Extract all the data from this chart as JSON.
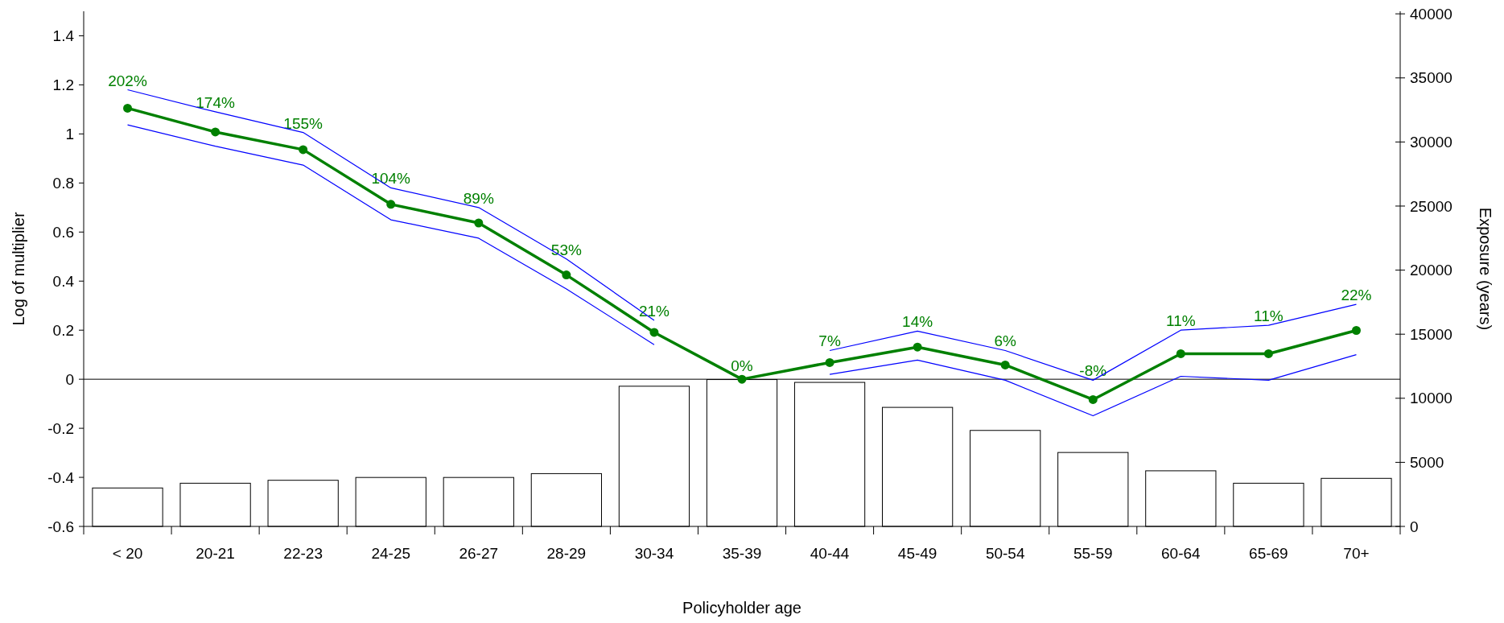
{
  "chart_data": {
    "type": "line",
    "xlabel": "Policyholder age",
    "ylabel": "Log of multiplier",
    "y2label": "Exposure (years)",
    "categories": [
      "< 20",
      "20-21",
      "22-23",
      "24-25",
      "26-27",
      "28-29",
      "30-34",
      "35-39",
      "40-44",
      "45-49",
      "50-54",
      "55-59",
      "60-64",
      "65-69",
      "70+"
    ],
    "series": [
      {
        "type": "bar",
        "axis": "y2",
        "color": "#ffffff",
        "values": [
          3000,
          3370,
          3600,
          3820,
          3820,
          4120,
          10940,
          11460,
          11240,
          9290,
          7490,
          5770,
          4340,
          3370,
          3750
        ]
      },
      {
        "type": "line",
        "color": "#0000ff",
        "marker": "none",
        "values": [
          1.18,
          1.09,
          1.006,
          0.78,
          0.7,
          0.49,
          0.24,
          null,
          0.117,
          0.196,
          0.117,
          -0.004,
          0.2,
          0.22,
          0.305
        ]
      },
      {
        "type": "line",
        "color": "#0000ff",
        "marker": "none",
        "values": [
          1.037,
          0.95,
          0.873,
          0.65,
          0.575,
          0.368,
          0.141,
          null,
          0.02,
          0.078,
          -0.004,
          -0.149,
          0.012,
          -0.004,
          0.1
        ]
      },
      {
        "color": "#008000",
        "marker": "circle",
        "values": [
          1.105,
          1.008,
          0.936,
          0.713,
          0.637,
          0.425,
          0.191,
          0,
          0.068,
          0.131,
          0.058,
          -0.083,
          0.104,
          0.104,
          0.199
        ]
      }
    ],
    "annotations": [
      {
        "text": "202%",
        "x": "< 20",
        "y": 1.105
      },
      {
        "text": "174%",
        "x": "20-21",
        "y": 1.008
      },
      {
        "text": "155%",
        "x": "22-23",
        "y": 0.936
      },
      {
        "text": "104%",
        "x": "24-25",
        "y": 0.713
      },
      {
        "text": "89%",
        "x": "26-27",
        "y": 0.637
      },
      {
        "text": "53%",
        "x": "28-29",
        "y": 0.425
      },
      {
        "text": "21%",
        "x": "30-34",
        "y": 0.191
      },
      {
        "text": "0%",
        "x": "35-39",
        "y": 0
      },
      {
        "text": "7%",
        "x": "40-44",
        "y": 0.068
      },
      {
        "text": "14%",
        "x": "45-49",
        "y": 0.131
      },
      {
        "text": "6%",
        "x": "50-54",
        "y": 0.058
      },
      {
        "text": "-8%",
        "x": "55-59",
        "y": -0.083
      },
      {
        "text": "11%",
        "x": "60-64",
        "y": 0.104
      },
      {
        "text": "11%",
        "x": "65-69",
        "y": 0.104
      },
      {
        "text": "22%",
        "x": "70+",
        "y": 0.199
      }
    ],
    "ylim": [
      -0.6,
      1.5
    ],
    "yticks": [
      -0.6,
      -0.4,
      -0.2,
      0,
      0.2,
      0.4,
      0.6,
      0.8,
      1,
      1.2,
      1.4
    ],
    "y2lim": [
      0,
      40200
    ],
    "y2ticks": [
      0,
      5000,
      10000,
      15000,
      20000,
      25000,
      30000,
      35000,
      40000
    ],
    "ref_lines": [
      {
        "axis": "y",
        "value": 0,
        "color": "#000000"
      }
    ],
    "grid": false
  }
}
